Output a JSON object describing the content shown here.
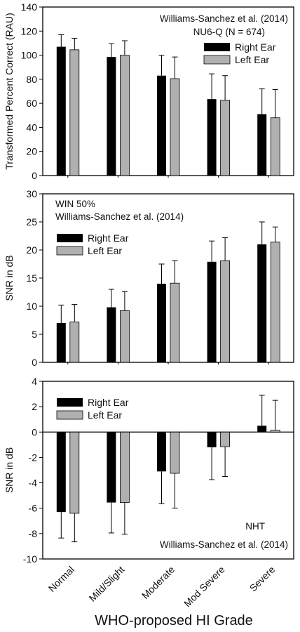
{
  "figure": {
    "xlabel": "WHO-proposed HI Grade"
  },
  "colors": {
    "right_ear": "#000000",
    "left_ear": "#b0b0b0",
    "axis": "#000000"
  },
  "chart_data": [
    {
      "type": "bar",
      "annotations": [
        "Williams-Sanchez et al. (2014)",
        "NU6-Q  (N = 674)"
      ],
      "ylabel": "Transformed Percent Correct (RAU)",
      "ylim": [
        0,
        140
      ],
      "yticks": [
        0,
        20,
        40,
        60,
        80,
        100,
        120,
        140
      ],
      "legend_position": "top-right",
      "categories": [
        "Normal",
        "Mild/Slight",
        "Moderate",
        "Mod Severe",
        "Severe"
      ],
      "series": [
        {
          "name": "Right Ear",
          "values": [
            107,
            98.5,
            83,
            63.5,
            51
          ],
          "error": [
            10,
            11,
            17,
            21,
            21
          ]
        },
        {
          "name": "Left Ear",
          "values": [
            104.5,
            100,
            80.5,
            62.5,
            48
          ],
          "error": [
            9.5,
            12,
            18,
            20.5,
            23.5
          ]
        }
      ]
    },
    {
      "type": "bar",
      "annotations": [
        "WIN 50%",
        "Williams-Sanchez et al. (2014)"
      ],
      "ylabel": "SNR in dB",
      "ylim": [
        0,
        30
      ],
      "yticks": [
        0,
        5,
        10,
        15,
        20,
        25,
        30
      ],
      "legend_position": "top-left",
      "categories": [
        "Normal",
        "Mild/Slight",
        "Moderate",
        "Mod Severe",
        "Severe"
      ],
      "series": [
        {
          "name": "Right Ear",
          "values": [
            7,
            9.8,
            14,
            17.9,
            21
          ],
          "error": [
            3.2,
            3.2,
            3.5,
            3.7,
            4
          ]
        },
        {
          "name": "Left Ear",
          "values": [
            7.2,
            9.2,
            14.1,
            18.1,
            21.4
          ],
          "error": [
            3.1,
            3.4,
            4,
            4.1,
            2.7
          ]
        }
      ]
    },
    {
      "type": "bar",
      "annotations": [
        "NHT",
        "Williams-Sanchez et al. (2014)"
      ],
      "ylabel": "SNR in dB",
      "ylim": [
        -10,
        4
      ],
      "yticks": [
        -10,
        -8,
        -6,
        -4,
        -2,
        0,
        2,
        4
      ],
      "legend_position": "top-left",
      "categories": [
        "Normal",
        "Mild/Slight",
        "Moderate",
        "Mod Severe",
        "Severe"
      ],
      "series": [
        {
          "name": "Right Ear",
          "values": [
            -6.3,
            -5.55,
            -3.1,
            -1.2,
            0.5
          ],
          "error": [
            2.05,
            2.4,
            2.55,
            2.55,
            2.4
          ]
        },
        {
          "name": "Left Ear",
          "values": [
            -6.4,
            -5.55,
            -3.25,
            -1.15,
            0.15
          ],
          "error": [
            2.25,
            2.5,
            2.75,
            2.35,
            2.35
          ]
        }
      ]
    }
  ]
}
